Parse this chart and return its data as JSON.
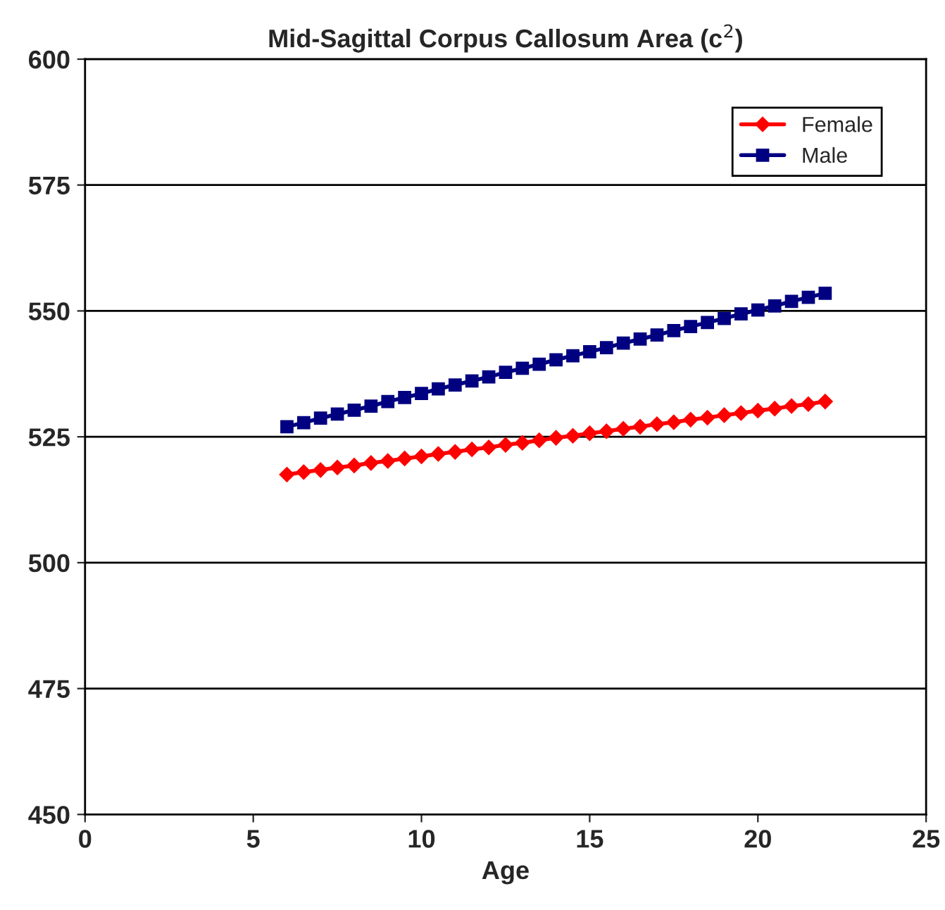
{
  "chart_data": {
    "type": "line",
    "title": "Mid-Sagittal Corpus Callosum Area (c$^{2}$)",
    "xlabel": "Age",
    "x": [
      6,
      6.5,
      7,
      7.5,
      8,
      8.5,
      9,
      9.5,
      10,
      10.5,
      11,
      11.5,
      12,
      12.5,
      13,
      13.5,
      14,
      14.5,
      15,
      15.5,
      16,
      16.5,
      17,
      17.5,
      18,
      18.5,
      19,
      19.5,
      20,
      20.5,
      21,
      21.5,
      22
    ],
    "series": [
      {
        "name": "Female",
        "color": "#ff0000",
        "marker": "diamond",
        "values": [
          517.5,
          518.0,
          518.4,
          518.9,
          519.3,
          519.8,
          520.2,
          520.7,
          521.1,
          521.6,
          522.0,
          522.5,
          522.9,
          523.4,
          523.8,
          524.3,
          524.8,
          525.2,
          525.7,
          526.1,
          526.6,
          527.0,
          527.5,
          527.9,
          528.4,
          528.8,
          529.3,
          529.7,
          530.2,
          530.6,
          531.1,
          531.5,
          532.0
        ]
      },
      {
        "name": "Male",
        "color": "#000080",
        "marker": "square",
        "values": [
          527.0,
          527.8,
          528.7,
          529.5,
          530.3,
          531.1,
          532.0,
          532.8,
          533.6,
          534.5,
          535.3,
          536.1,
          536.9,
          537.8,
          538.6,
          539.4,
          540.3,
          541.1,
          541.9,
          542.7,
          543.6,
          544.4,
          545.2,
          546.1,
          546.9,
          547.7,
          548.5,
          549.4,
          550.2,
          551.0,
          551.9,
          552.7,
          553.5
        ]
      }
    ],
    "xlim": [
      0,
      25
    ],
    "xticks": [
      0,
      5,
      10,
      15,
      20,
      25
    ],
    "ylim": [
      450,
      600
    ],
    "yticks": [
      450,
      475,
      500,
      525,
      550,
      575,
      600
    ],
    "grid": "y",
    "legend": "top right",
    "line_style": "solid"
  }
}
